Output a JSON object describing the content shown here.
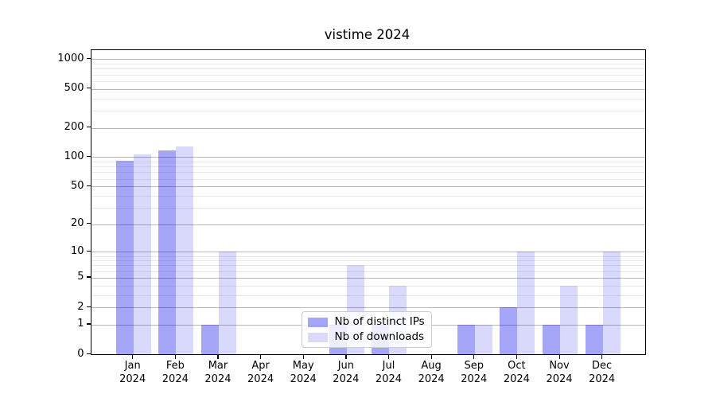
{
  "chart_data": {
    "type": "bar",
    "title": "vistime 2024",
    "categories": [
      "Jan 2024",
      "Feb 2024",
      "Mar 2024",
      "Apr 2024",
      "May 2024",
      "Jun 2024",
      "Jul 2024",
      "Aug 2024",
      "Sep 2024",
      "Oct 2024",
      "Nov 2024",
      "Dec 2024"
    ],
    "series": [
      {
        "name": "Nb of distinct IPs",
        "color": "#0000EE59",
        "values": [
          92,
          118,
          1,
          0,
          0,
          1,
          1,
          0,
          1,
          2,
          1,
          1
        ]
      },
      {
        "name": "Nb of downloads",
        "color": "#0000EE26",
        "values": [
          107,
          128,
          10,
          0,
          0,
          7,
          4,
          0,
          1,
          10,
          4,
          10
        ]
      }
    ],
    "xlabel": "",
    "ylabel": "",
    "y_axis": {
      "scale": "log(1+x)",
      "ticks": [
        0,
        1,
        2,
        5,
        10,
        20,
        50,
        100,
        200,
        500,
        1000
      ],
      "minor_ticks": [
        3,
        4,
        6,
        7,
        8,
        9,
        30,
        40,
        60,
        70,
        80,
        90,
        300,
        400,
        600,
        700,
        800,
        900
      ],
      "ylim": [
        0,
        1240
      ]
    },
    "grid": "on",
    "legend_position": "inside lower-center"
  },
  "colors": {
    "bar_distinct_ips": "#a9a9f9",
    "bar_downloads": "#d8d8f9",
    "grid_major": "#b9b9b9",
    "grid_minor": "#e9e9ec",
    "spine": "#000000",
    "legend_border": "#cccccc",
    "background": "#ffffff"
  }
}
